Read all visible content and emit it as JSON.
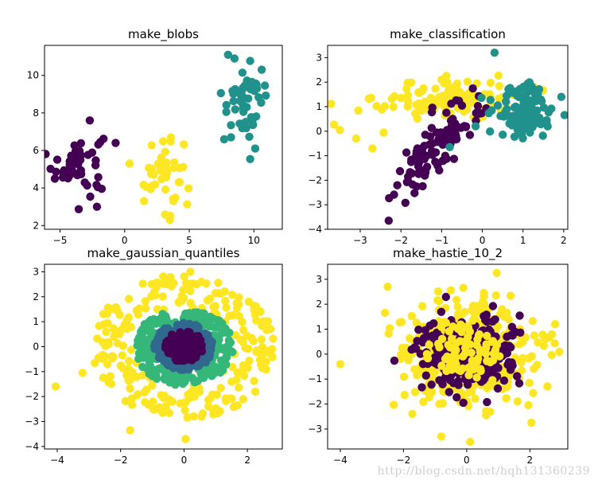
{
  "watermark": "http://blog.csdn.net/hqh131360239",
  "colors": {
    "viridis_purple": "#440154",
    "viridis_blue": "#31688e",
    "viridis_teal": "#21918c",
    "viridis_green": "#35b779",
    "viridis_yellow": "#fde725"
  },
  "chart_data": [
    {
      "type": "scatter",
      "title": "make_blobs",
      "xlim": [
        -6.2,
        12.2
      ],
      "ylim": [
        1.8,
        11.6
      ],
      "xticks": [
        -5,
        0,
        5,
        10
      ],
      "yticks": [
        2,
        4,
        6,
        8,
        10
      ],
      "groups": [
        {
          "color": "#440154",
          "shape": "cluster",
          "cx": -3.6,
          "cy": 5.3,
          "sx": 1.0,
          "sy": 0.85,
          "count": 50
        },
        {
          "color": "#fde725",
          "shape": "cluster",
          "cx": 3.0,
          "cy": 4.9,
          "sx": 0.75,
          "sy": 1.1,
          "count": 45
        },
        {
          "color": "#21918c",
          "shape": "cluster",
          "cx": 9.3,
          "cy": 8.6,
          "sx": 0.9,
          "sy": 1.0,
          "count": 50
        }
      ],
      "points": [
        {
          "x": 8.0,
          "y": 11.1,
          "color": "#21918c"
        },
        {
          "x": 8.5,
          "y": 10.9,
          "color": "#21918c"
        },
        {
          "x": 10.1,
          "y": 6.1,
          "color": "#21918c"
        },
        {
          "x": 7.7,
          "y": 6.6,
          "color": "#21918c"
        },
        {
          "x": 3.5,
          "y": 2.3,
          "color": "#fde725"
        },
        {
          "x": 1.5,
          "y": 3.3,
          "color": "#fde725"
        },
        {
          "x": -2.7,
          "y": 7.6,
          "color": "#440154"
        },
        {
          "x": -0.7,
          "y": 6.4,
          "color": "#440154"
        },
        {
          "x": -5.4,
          "y": 4.5,
          "color": "#440154"
        }
      ]
    },
    {
      "type": "scatter",
      "title": "make_classification",
      "xlim": [
        -3.8,
        2.1
      ],
      "ylim": [
        -4.0,
        3.5
      ],
      "xticks": [
        -3,
        -2,
        -1,
        0,
        1,
        2
      ],
      "yticks": [
        -4,
        -3,
        -2,
        -1,
        0,
        1,
        2,
        3
      ],
      "groups": [
        {
          "color": "#fde725",
          "shape": "cluster",
          "cx": -0.9,
          "cy": 1.3,
          "sx": 0.85,
          "sy": 0.45,
          "count": 110
        },
        {
          "color": "#440154",
          "shape": "band",
          "cx": -1.1,
          "cy": -0.6,
          "dir": [
            0.45,
            1.0
          ],
          "sl": 1.1,
          "sw": 0.28,
          "count": 110
        },
        {
          "color": "#21918c",
          "shape": "cluster",
          "cx": 1.0,
          "cy": 0.8,
          "sx": 0.38,
          "sy": 0.6,
          "count": 110
        }
      ],
      "points": [
        {
          "x": -3.5,
          "y": 0.05,
          "color": "#fde725"
        },
        {
          "x": -3.1,
          "y": -0.3,
          "color": "#fde725"
        },
        {
          "x": -2.7,
          "y": -0.7,
          "color": "#fde725"
        },
        {
          "x": -2.3,
          "y": -3.65,
          "color": "#440154"
        },
        {
          "x": 0.3,
          "y": 3.2,
          "color": "#21918c"
        },
        {
          "x": -0.8,
          "y": -0.65,
          "color": "#21918c"
        },
        {
          "x": -1.0,
          "y": 2.1,
          "color": "#fde725"
        }
      ]
    },
    {
      "type": "scatter",
      "title": "make_gaussian_quantiles",
      "xlim": [
        -4.4,
        3.1
      ],
      "ylim": [
        -4.1,
        3.3
      ],
      "xticks": [
        -4,
        -2,
        0,
        2
      ],
      "yticks": [
        -4,
        -3,
        -2,
        -1,
        0,
        1,
        2,
        3
      ],
      "groups": [
        {
          "color": "#fde725",
          "shape": "ring",
          "cx": 0,
          "cy": 0,
          "r": [
            1.55,
            2.9
          ],
          "count": 240
        },
        {
          "color": "#35b779",
          "shape": "ring",
          "cx": 0,
          "cy": 0,
          "r": [
            0.95,
            1.55
          ],
          "count": 220
        },
        {
          "color": "#31688e",
          "shape": "ring",
          "cx": 0,
          "cy": 0,
          "r": [
            0.62,
            0.95
          ],
          "count": 170
        },
        {
          "color": "#440154",
          "shape": "ring",
          "cx": 0,
          "cy": 0,
          "r": [
            0.0,
            0.62
          ],
          "count": 150
        }
      ],
      "points": [
        {
          "x": -4.05,
          "y": -1.6,
          "color": "#fde725"
        },
        {
          "x": -3.2,
          "y": -1.05,
          "color": "#fde725"
        },
        {
          "x": 0.05,
          "y": -3.7,
          "color": "#fde725"
        },
        {
          "x": -1.7,
          "y": -3.35,
          "color": "#fde725"
        },
        {
          "x": 2.7,
          "y": -0.25,
          "color": "#fde725"
        },
        {
          "x": 0.2,
          "y": 3.0,
          "color": "#fde725"
        }
      ]
    },
    {
      "type": "scatter",
      "title": "make_hastie_10_2",
      "xlim": [
        -4.4,
        3.2
      ],
      "ylim": [
        -3.8,
        3.6
      ],
      "xticks": [
        -4,
        -2,
        0,
        2
      ],
      "yticks": [
        -3,
        -2,
        -1,
        0,
        1,
        2,
        3
      ],
      "groups": [
        {
          "color": "#fde725",
          "shape": "cluster",
          "cx": 0,
          "cy": 0,
          "sx": 1.05,
          "sy": 1.05,
          "count": 400
        },
        {
          "color": "#440154",
          "shape": "cluster",
          "cx": 0,
          "cy": 0,
          "sx": 0.72,
          "sy": 0.72,
          "count": 330
        },
        {
          "color": "#fde725",
          "shape": "cluster",
          "cx": 0,
          "cy": 0,
          "sx": 0.6,
          "sy": 0.6,
          "count": 90
        }
      ],
      "points": [
        {
          "x": -4.0,
          "y": -0.4,
          "color": "#fde725"
        },
        {
          "x": 0.95,
          "y": 3.25,
          "color": "#fde725"
        },
        {
          "x": 2.05,
          "y": -2.75,
          "color": "#fde725"
        },
        {
          "x": -0.8,
          "y": -3.3,
          "color": "#fde725"
        },
        {
          "x": 2.8,
          "y": 1.2,
          "color": "#fde725"
        },
        {
          "x": -2.5,
          "y": 2.7,
          "color": "#fde725"
        }
      ]
    }
  ]
}
